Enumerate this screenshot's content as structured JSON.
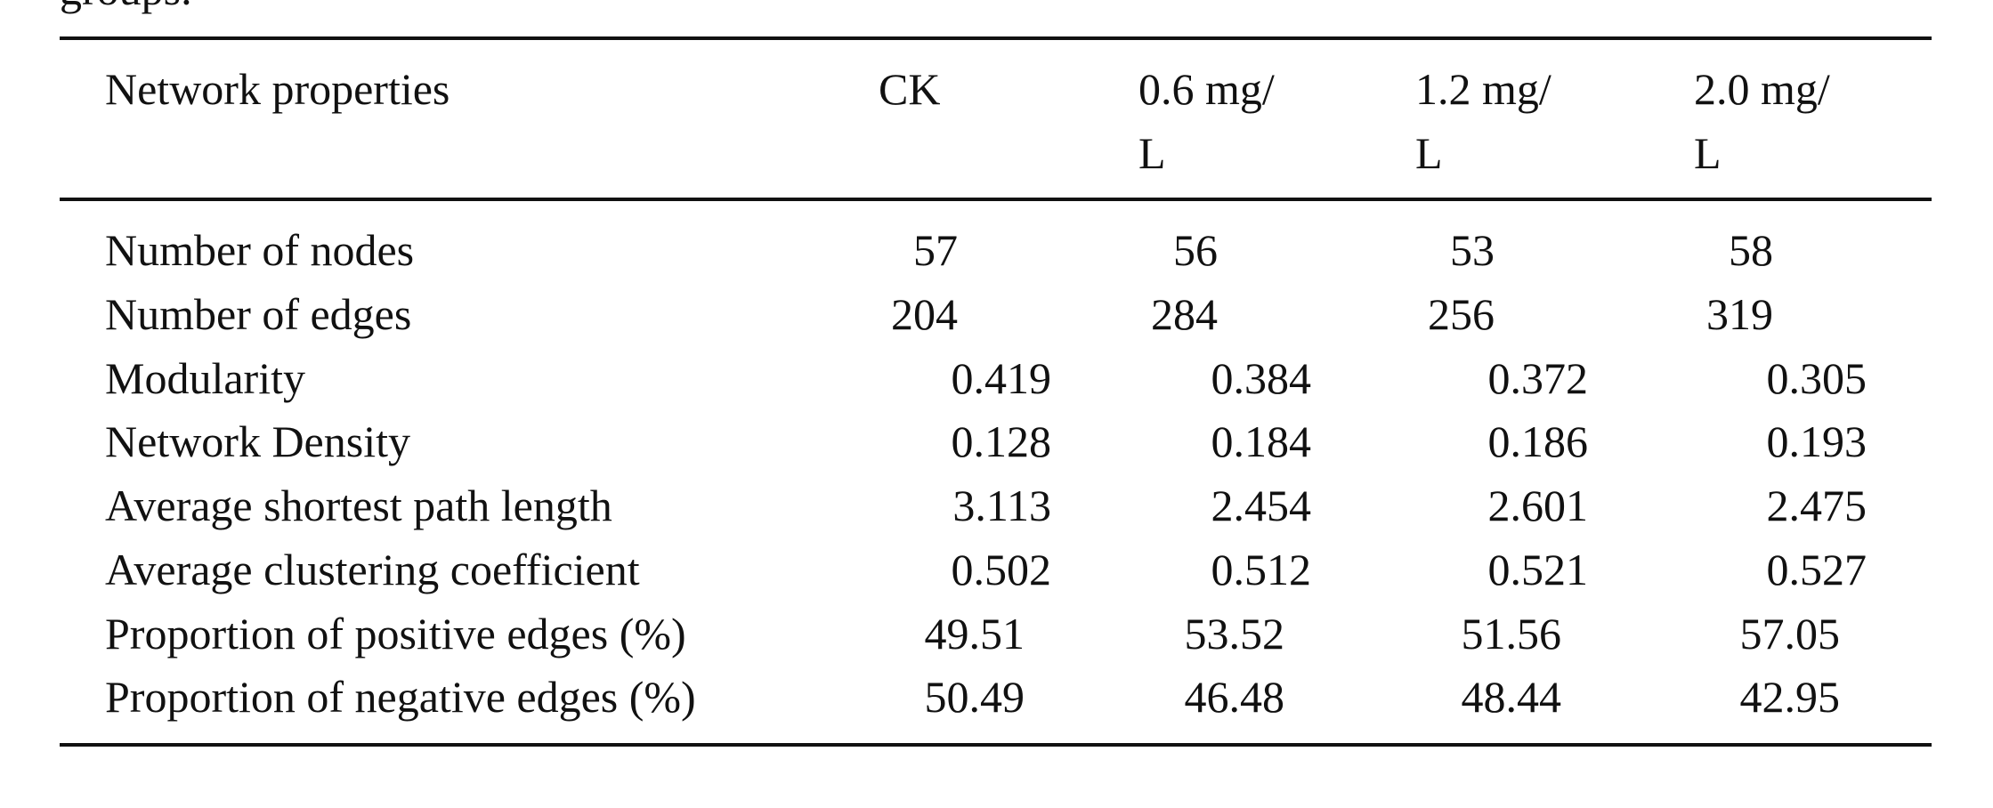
{
  "caption_fragment": "groups.",
  "table": {
    "header": [
      "Network properties",
      "CK",
      "0.6 mg/\nL",
      "1.2 mg/\nL",
      "2.0 mg/\nL"
    ],
    "rows": [
      [
        "Number of nodes",
        "57",
        "56",
        "53",
        "58"
      ],
      [
        "Number of edges",
        "204",
        "284",
        "256",
        "319"
      ],
      [
        "Modularity",
        "0.419",
        "0.384",
        "0.372",
        "0.305"
      ],
      [
        "Network Density",
        "0.128",
        "0.184",
        "0.186",
        "0.193"
      ],
      [
        "Average shortest path length",
        "3.113",
        "2.454",
        "2.601",
        "2.475"
      ],
      [
        "Average clustering coefficient",
        "0.502",
        "0.512",
        "0.521",
        "0.527"
      ],
      [
        "Proportion of positive edges (%)",
        "49.51",
        "53.52",
        "51.56",
        "57.05"
      ],
      [
        "Proportion of negative edges (%)",
        "50.49",
        "46.48",
        "48.44",
        "42.95"
      ]
    ]
  }
}
